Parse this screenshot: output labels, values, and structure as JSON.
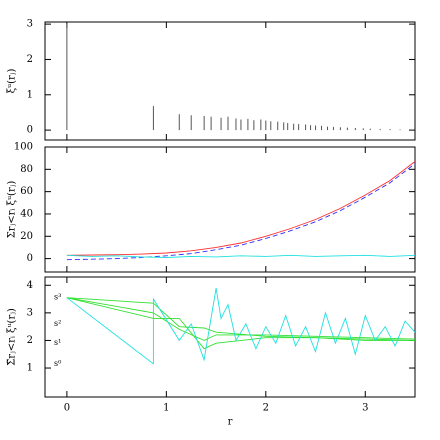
{
  "chart_data": [
    {
      "type": "spike",
      "ylabel": "ξᵘ(rⱼ)",
      "xlim": [
        -0.22,
        3.5
      ],
      "xticks": [
        0,
        1,
        2,
        3
      ],
      "ylim": [
        -0.28,
        3.06
      ],
      "yticks": [
        0,
        1,
        2,
        3
      ],
      "series": [
        {
          "color": "#555555",
          "x": [
            0,
            0.87,
            1.13,
            1.25,
            1.38,
            1.45,
            1.55,
            1.62,
            1.7,
            1.75,
            1.82,
            1.88,
            1.95,
            2.0,
            2.05,
            2.12,
            2.18,
            2.22,
            2.28,
            2.33,
            2.4,
            2.45,
            2.5,
            2.56,
            2.62,
            2.68,
            2.75,
            2.82,
            2.9,
            2.98,
            3.05,
            3.15,
            3.25,
            3.35,
            3.45
          ],
          "values": [
            3.0,
            0.68,
            0.45,
            0.42,
            0.4,
            0.38,
            0.35,
            0.38,
            0.33,
            0.3,
            0.32,
            0.28,
            0.3,
            0.27,
            0.25,
            0.24,
            0.22,
            0.2,
            0.18,
            0.17,
            0.16,
            0.14,
            0.13,
            0.12,
            0.1,
            0.09,
            0.08,
            0.07,
            0.06,
            0.05,
            0.04,
            0.03,
            0.03,
            0.02,
            0.02
          ]
        }
      ]
    },
    {
      "type": "line",
      "ylabel": "Σrⱼ<rᵢ ξᵘ(rⱼ)",
      "xlim": [
        -0.22,
        3.5
      ],
      "xticks": [
        0,
        1,
        2,
        3
      ],
      "ylim": [
        -12,
        100
      ],
      "yticks": [
        0,
        20,
        40,
        60,
        80,
        100
      ],
      "series": [
        {
          "color": "#ff3030",
          "style": "solid",
          "x": [
            0,
            0.25,
            0.5,
            0.75,
            1,
            1.25,
            1.5,
            1.75,
            2,
            2.25,
            2.5,
            2.75,
            3,
            3.25,
            3.5
          ],
          "values": [
            3,
            3.2,
            3.5,
            4,
            5,
            7,
            10,
            14,
            20,
            27,
            35,
            45,
            57,
            70,
            87
          ]
        },
        {
          "color": "#3030ff",
          "style": "dashed",
          "x": [
            0,
            0.25,
            0.5,
            0.75,
            1,
            1.25,
            1.5,
            1.75,
            2,
            2.25,
            2.5,
            2.75,
            3,
            3.25,
            3.5
          ],
          "values": [
            -1,
            -0.5,
            0,
            1,
            2.5,
            4.5,
            8,
            12,
            18,
            25,
            33,
            43,
            55,
            68,
            85
          ]
        },
        {
          "color": "#20e0e0",
          "style": "solid",
          "x": [
            0,
            0.25,
            0.5,
            0.75,
            1,
            1.25,
            1.5,
            1.75,
            2,
            2.25,
            2.5,
            2.75,
            3,
            3.25,
            3.5
          ],
          "values": [
            3,
            2,
            2.5,
            1.5,
            1,
            2,
            1.5,
            2.5,
            2,
            3,
            2,
            2.5,
            3,
            2,
            3
          ]
        }
      ]
    },
    {
      "type": "line",
      "ylabel": "Σ̃rⱼ<rᵢ ξᵘ(rⱼ)",
      "xlabel": "r",
      "xlim": [
        -0.22,
        3.5
      ],
      "xticks": [
        0,
        1,
        2,
        3
      ],
      "ylim": [
        -0.05,
        4.3
      ],
      "yticks": [
        1,
        2,
        3,
        4
      ],
      "annotations": [
        "s³",
        "s²",
        "s¹",
        "s⁰"
      ],
      "series": [
        {
          "color": "#30e030",
          "style": "solid",
          "x": [
            0,
            0.87,
            1.13,
            1.38,
            1.5,
            2,
            2.5,
            3,
            3.5
          ],
          "values": [
            3.55,
            3.35,
            2.5,
            2.45,
            2.3,
            2.15,
            2.1,
            2.05,
            2.0
          ]
        },
        {
          "color": "#30e030",
          "style": "solid",
          "x": [
            0,
            0.87,
            1.13,
            1.38,
            1.5,
            2,
            2.5,
            3,
            3.5
          ],
          "values": [
            3.55,
            3.0,
            2.4,
            2.0,
            2.2,
            2.2,
            2.15,
            2.1,
            2.05
          ]
        },
        {
          "color": "#30e030",
          "style": "solid",
          "x": [
            0,
            0.87,
            1.13,
            1.38,
            1.5,
            2,
            2.5,
            3,
            3.5
          ],
          "values": [
            3.55,
            2.8,
            2.8,
            1.7,
            1.9,
            2.1,
            2.1,
            2.0,
            2.0
          ]
        },
        {
          "color": "#20e0e0",
          "style": "solid",
          "x": [
            0,
            0.87,
            0.87,
            1.13,
            1.25,
            1.38,
            1.5,
            1.55,
            1.62,
            1.7,
            1.8,
            1.9,
            2,
            2.1,
            2.2,
            2.3,
            2.4,
            2.5,
            2.6,
            2.7,
            2.8,
            2.9,
            3,
            3.1,
            3.2,
            3.3,
            3.4,
            3.5
          ],
          "values": [
            3.55,
            1.15,
            3.5,
            2.0,
            2.6,
            1.3,
            3.9,
            2.8,
            3.3,
            2.0,
            2.6,
            1.7,
            2.5,
            1.9,
            2.9,
            1.8,
            2.5,
            1.6,
            3.0,
            1.9,
            2.8,
            1.5,
            2.9,
            2.0,
            2.5,
            1.8,
            2.7,
            2.3
          ]
        }
      ]
    }
  ]
}
